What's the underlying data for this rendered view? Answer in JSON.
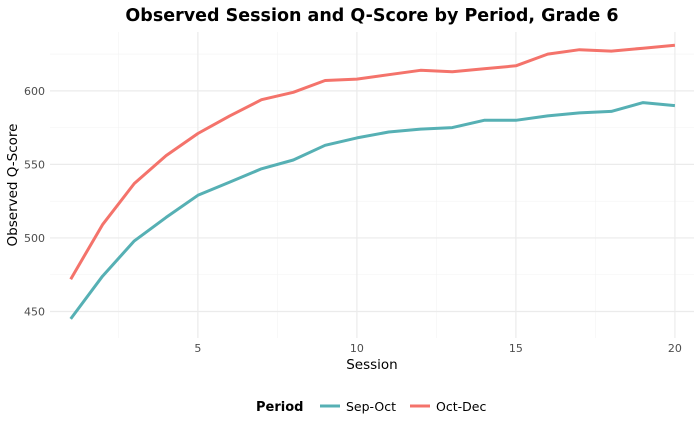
{
  "chart_data": {
    "type": "line",
    "title": "Observed Session and Q-Score by Period, Grade 6",
    "xlabel": "Session",
    "ylabel": "Observed Q-Score",
    "xlim": [
      0.35,
      20.6
    ],
    "ylim": [
      432,
      640
    ],
    "x_ticks": [
      5,
      10,
      15,
      20
    ],
    "x_tick_labels": [
      "5",
      "10",
      "15",
      "20"
    ],
    "y_ticks": [
      450,
      500,
      550,
      600
    ],
    "y_tick_labels": [
      "450",
      "500",
      "550",
      "600"
    ],
    "grid": true,
    "legend": {
      "title": "Period",
      "placement": "bottom"
    },
    "x": [
      1,
      2,
      3,
      4,
      5,
      6,
      7,
      8,
      9,
      10,
      11,
      12,
      13,
      14,
      15,
      16,
      17,
      18,
      19,
      20
    ],
    "series": [
      {
        "name": "Sep-Oct",
        "color": "#56B0B4",
        "values": [
          445,
          474,
          498,
          514,
          529,
          538,
          547,
          553,
          563,
          568,
          572,
          574,
          575,
          580,
          580,
          583,
          585,
          586,
          592,
          590
        ]
      },
      {
        "name": "Oct-Dec",
        "color": "#F4736B",
        "values": [
          472,
          509,
          537,
          556,
          571,
          583,
          594,
          599,
          607,
          608,
          611,
          614,
          613,
          615,
          617,
          625,
          628,
          627,
          629,
          631
        ]
      }
    ]
  }
}
